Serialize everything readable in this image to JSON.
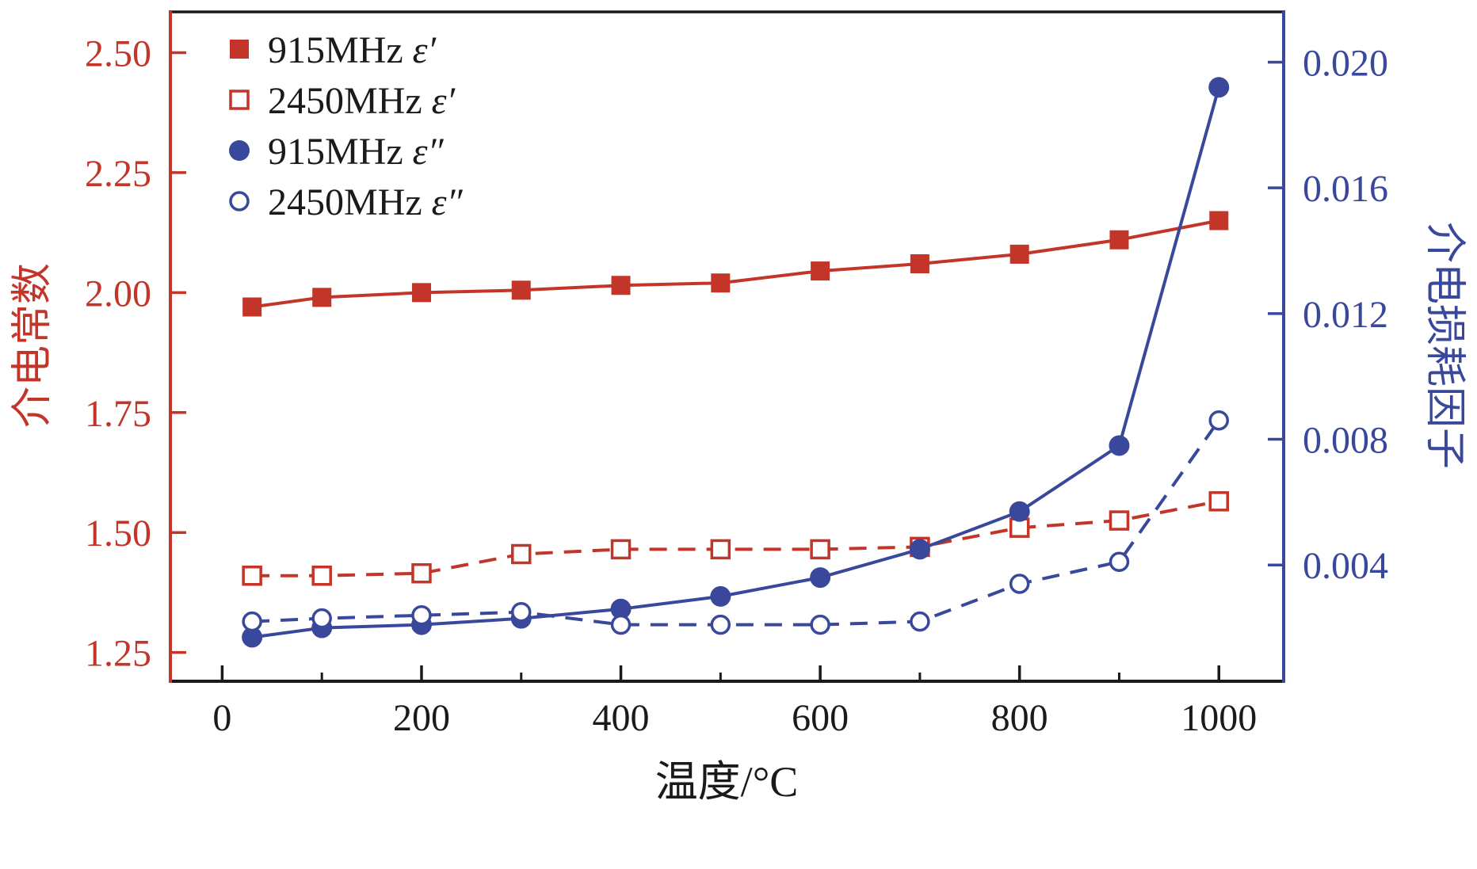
{
  "figure": {
    "background": "#ffffff",
    "text_color": "#1a1a1a"
  },
  "chart_data": {
    "type": "line",
    "title": "",
    "grid": false,
    "legend_position": "top-left",
    "axes": {
      "x": {
        "label": "温度/°C",
        "range": [
          -52,
          1065
        ],
        "ticks": [
          0,
          200,
          400,
          600,
          800,
          1000
        ],
        "tick_labels": [
          "0",
          "200",
          "400",
          "600",
          "800",
          "1000"
        ],
        "minor_ticks": [
          100,
          300,
          500,
          700,
          900
        ],
        "color": "#1a1a1a"
      },
      "y_left": {
        "label": "介电常数",
        "range": [
          1.19,
          2.585
        ],
        "ticks": [
          1.25,
          1.5,
          1.75,
          2.0,
          2.25,
          2.5
        ],
        "tick_labels": [
          "1.25",
          "1.50",
          "1.75",
          "2.00",
          "2.25",
          "2.50"
        ],
        "color": "#c23528"
      },
      "y_right": {
        "label": "介电损耗因子",
        "range": [
          0.0003,
          0.0216
        ],
        "ticks": [
          0.004,
          0.008,
          0.012,
          0.016,
          0.02
        ],
        "tick_labels": [
          "0.004",
          "0.008",
          "0.012",
          "0.016",
          "0.020"
        ],
        "color": "#3a489b"
      }
    },
    "x": [
      30,
      100,
      200,
      300,
      400,
      500,
      600,
      700,
      800,
      900,
      1000
    ],
    "series": [
      {
        "name": "915MHz ε′",
        "freq": "915MHz",
        "symbol": "ε′",
        "axis": "left",
        "color": "#c23528",
        "marker": "square-filled",
        "line": "solid",
        "values": [
          1.97,
          1.99,
          2.0,
          2.005,
          2.015,
          2.02,
          2.045,
          2.06,
          2.08,
          2.11,
          2.15
        ]
      },
      {
        "name": "2450MHz ε′",
        "freq": "2450MHz",
        "symbol": "ε′",
        "axis": "left",
        "color": "#c23528",
        "marker": "square-open",
        "line": "dashed",
        "values": [
          1.41,
          1.41,
          1.415,
          1.455,
          1.465,
          1.465,
          1.465,
          1.47,
          1.51,
          1.525,
          1.565
        ]
      },
      {
        "name": "915MHz ε″",
        "freq": "915MHz",
        "symbol": "ε″",
        "axis": "right",
        "color": "#3a489b",
        "marker": "circle-filled",
        "line": "solid",
        "values": [
          0.0017,
          0.002,
          0.0021,
          0.0023,
          0.0026,
          0.003,
          0.0036,
          0.0045,
          0.0057,
          0.0078,
          0.0192
        ]
      },
      {
        "name": "2450MHz ε″",
        "freq": "2450MHz",
        "symbol": "ε″",
        "axis": "right",
        "color": "#3a489b",
        "marker": "circle-open",
        "line": "dashed",
        "values": [
          0.0022,
          0.0023,
          0.0024,
          0.0025,
          0.0021,
          0.0021,
          0.0021,
          0.0022,
          0.0034,
          0.0041,
          0.0086
        ]
      }
    ]
  }
}
